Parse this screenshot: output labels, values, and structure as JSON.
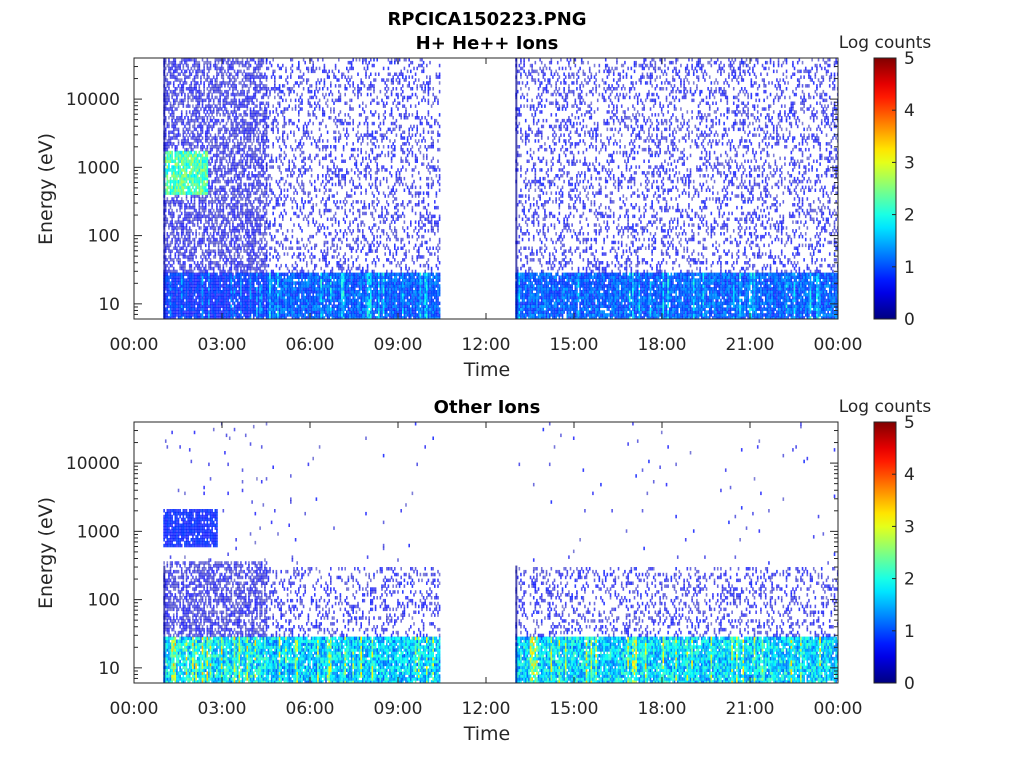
{
  "figure": {
    "title_line1": "RPCICA150223.PNG"
  },
  "chart_data": [
    {
      "type": "heatmap",
      "title": "H+ He++ Ions",
      "xlabel": "Time",
      "ylabel": "Energy (eV)",
      "x_ticks": [
        "00:00",
        "03:00",
        "06:00",
        "09:00",
        "12:00",
        "15:00",
        "18:00",
        "21:00",
        "00:00"
      ],
      "x_range_hours": [
        0,
        24
      ],
      "y_scale": "log",
      "y_ticks": [
        "10",
        "100",
        "1000",
        "10000"
      ],
      "y_range": [
        6,
        40000
      ],
      "colorbar": {
        "label": "Log counts",
        "ticks": [
          "0",
          "1",
          "2",
          "3",
          "4",
          "5"
        ],
        "range": [
          0,
          5
        ],
        "colormap": "jet"
      },
      "data_segments": [
        {
          "start_hour": 1.0,
          "end_hour": 4.5,
          "dense_signal": true
        },
        {
          "start_hour": 4.5,
          "end_hour": 10.4,
          "dense_signal": false
        },
        {
          "start_hour": 13.0,
          "end_hour": 24.0,
          "dense_signal": false
        }
      ],
      "data_gap_hours": [
        10.4,
        13.0
      ],
      "features": [
        {
          "label": "low-energy band",
          "energy_range": [
            6,
            28
          ],
          "log_counts": 1.2
        },
        {
          "label": "peak",
          "time_hours": [
            1.0,
            2.5
          ],
          "energy_range": [
            400,
            1800
          ],
          "log_counts": 2.3
        }
      ]
    },
    {
      "type": "heatmap",
      "title": "Other Ions",
      "xlabel": "Time",
      "ylabel": "Energy (eV)",
      "x_ticks": [
        "00:00",
        "03:00",
        "06:00",
        "09:00",
        "12:00",
        "15:00",
        "18:00",
        "21:00",
        "00:00"
      ],
      "x_range_hours": [
        0,
        24
      ],
      "y_scale": "log",
      "y_ticks": [
        "10",
        "100",
        "1000",
        "10000"
      ],
      "y_range": [
        6,
        40000
      ],
      "colorbar": {
        "label": "Log counts",
        "ticks": [
          "0",
          "1",
          "2",
          "3",
          "4",
          "5"
        ],
        "range": [
          0,
          5
        ],
        "colormap": "jet"
      },
      "data_segments": [
        {
          "start_hour": 1.0,
          "end_hour": 4.5,
          "dense_signal": true
        },
        {
          "start_hour": 4.5,
          "end_hour": 10.4,
          "dense_signal": false
        },
        {
          "start_hour": 13.0,
          "end_hour": 24.0,
          "dense_signal": false
        }
      ],
      "data_gap_hours": [
        10.4,
        13.0
      ],
      "features": [
        {
          "label": "low-energy band",
          "energy_range": [
            6,
            28
          ],
          "log_counts": 1.8
        },
        {
          "label": "patches",
          "time_hours": [
            1.0,
            2.8
          ],
          "energy_range": [
            600,
            2200
          ],
          "log_counts": 0.8
        }
      ]
    }
  ]
}
